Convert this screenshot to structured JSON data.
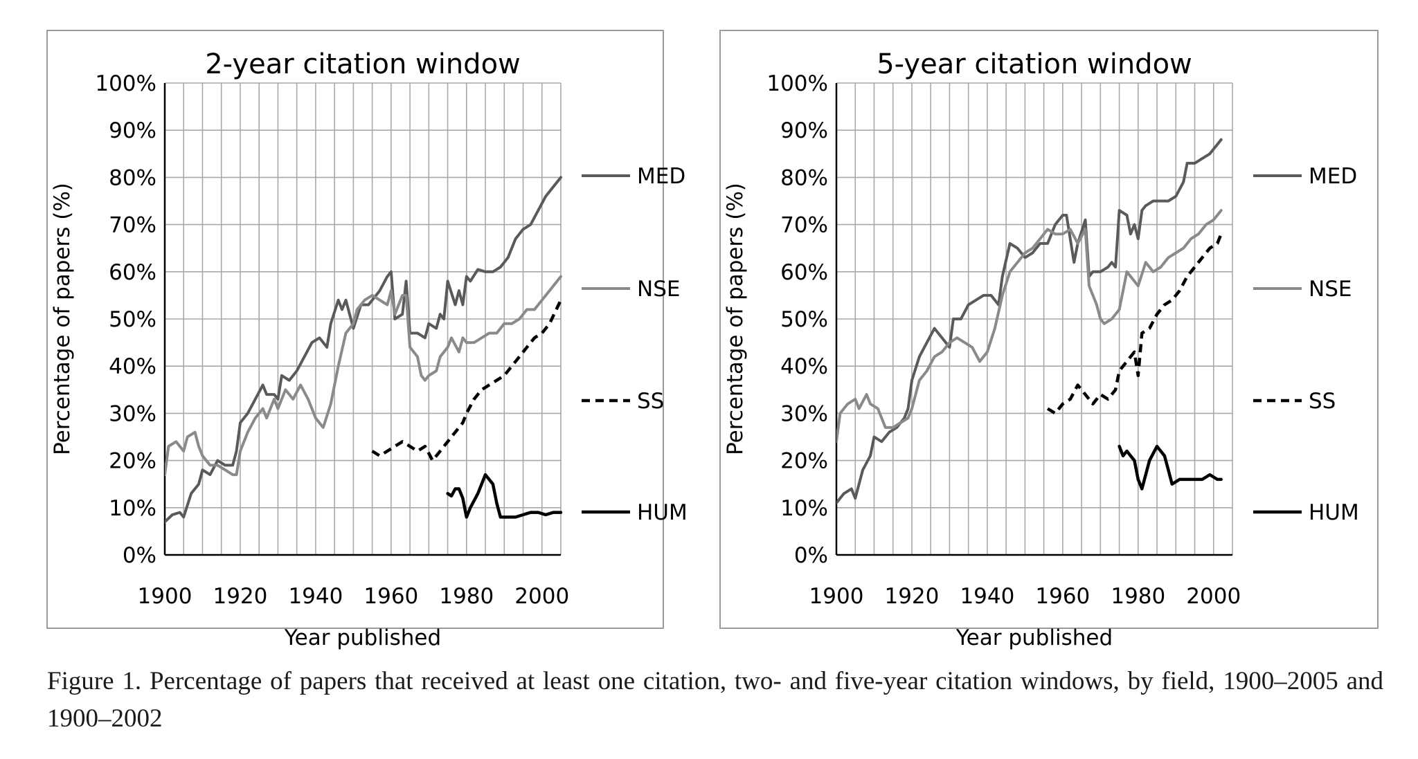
{
  "caption": "Figure 1. Percentage of papers that received at least one citation, two- and five-year citation windows, by field, 1900–2005 and 1900–2002",
  "chart_data": [
    {
      "type": "line",
      "title": "2-year citation window",
      "xlabel": "Year published",
      "ylabel": "Percentage of papers (%)",
      "xlim": [
        1900,
        2005
      ],
      "ylim": [
        0,
        100
      ],
      "xticks": [
        1900,
        1920,
        1940,
        1960,
        1980,
        2000
      ],
      "yticks": [
        0,
        10,
        20,
        30,
        40,
        50,
        60,
        70,
        80,
        90,
        100
      ],
      "ytick_suffix": "%",
      "grid": true,
      "legend": "right",
      "series": [
        {
          "name": "MED",
          "color": "#5a5a5a",
          "dash": "solid",
          "width": 4,
          "x": [
            1900,
            1902,
            1904,
            1905,
            1907,
            1909,
            1910,
            1912,
            1914,
            1916,
            1918,
            1919,
            1920,
            1922,
            1924,
            1926,
            1927,
            1929,
            1930,
            1931,
            1933,
            1935,
            1937,
            1939,
            1941,
            1943,
            1944,
            1946,
            1947,
            1948,
            1950,
            1952,
            1954,
            1955,
            1957,
            1959,
            1960,
            1961,
            1963,
            1964,
            1965,
            1967,
            1969,
            1970,
            1972,
            1973,
            1974,
            1975,
            1977,
            1978,
            1979,
            1980,
            1981,
            1983,
            1985,
            1987,
            1989,
            1991,
            1993,
            1995,
            1997,
            1999,
            2001,
            2003,
            2005
          ],
          "values": [
            7,
            8.5,
            9,
            8,
            13,
            15,
            18,
            17,
            20,
            19,
            19,
            22,
            28,
            30,
            33,
            36,
            34,
            34,
            33,
            38,
            37,
            39,
            42,
            45,
            46,
            44,
            49,
            54,
            52,
            54,
            48,
            53,
            53,
            54,
            56,
            59,
            60,
            50,
            51,
            58,
            47,
            47,
            46,
            49,
            48,
            51,
            50,
            58,
            53,
            56,
            53,
            59,
            58,
            60.5,
            60,
            60,
            61,
            63,
            67,
            69,
            70,
            73,
            76,
            78,
            80
          ]
        },
        {
          "name": "NSE",
          "color": "#8a8a8a",
          "dash": "solid",
          "width": 4,
          "x": [
            1900,
            1901,
            1903,
            1905,
            1906,
            1908,
            1909,
            1910,
            1912,
            1914,
            1916,
            1918,
            1919,
            1920,
            1922,
            1924,
            1926,
            1927,
            1929,
            1930,
            1932,
            1934,
            1936,
            1938,
            1940,
            1942,
            1944,
            1946,
            1948,
            1950,
            1951,
            1953,
            1955,
            1957,
            1959,
            1960,
            1961,
            1963,
            1964,
            1965,
            1967,
            1968,
            1969,
            1970,
            1972,
            1973,
            1975,
            1976,
            1978,
            1979,
            1980,
            1982,
            1984,
            1986,
            1988,
            1990,
            1992,
            1994,
            1996,
            1998,
            2000,
            2002,
            2005
          ],
          "values": [
            17,
            23,
            24,
            22,
            25,
            26,
            23,
            21,
            19,
            19,
            18,
            17,
            17,
            22,
            26,
            29,
            31,
            29,
            33,
            31,
            35,
            33,
            36,
            33,
            29,
            27,
            32,
            40,
            47,
            49,
            52,
            54,
            55,
            54,
            53,
            56,
            51,
            55,
            55,
            44,
            42,
            38,
            37,
            38,
            39,
            42,
            44,
            46,
            43,
            46,
            45,
            45,
            46,
            47,
            47,
            49,
            49,
            50,
            52,
            52,
            54,
            56,
            59
          ]
        },
        {
          "name": "SS",
          "color": "#000000",
          "dash": "dashed",
          "width": 4.5,
          "x": [
            1955,
            1957,
            1959,
            1961,
            1963,
            1965,
            1967,
            1969,
            1971,
            1973,
            1975,
            1977,
            1979,
            1980,
            1982,
            1984,
            1986,
            1988,
            1990,
            1992,
            1994,
            1996,
            1998,
            2000,
            2002,
            2005
          ],
          "values": [
            22,
            21,
            22,
            23,
            24,
            23,
            22,
            23,
            20,
            22,
            24,
            26,
            28,
            30,
            33,
            35,
            36,
            37,
            38,
            40,
            42,
            44,
            46,
            47,
            49,
            54
          ]
        },
        {
          "name": "HUM",
          "color": "#000000",
          "dash": "solid",
          "width": 4.5,
          "x": [
            1975,
            1976,
            1977,
            1978,
            1979,
            1980,
            1981,
            1983,
            1985,
            1987,
            1988,
            1989,
            1991,
            1993,
            1995,
            1997,
            1999,
            2001,
            2003,
            2005
          ],
          "values": [
            13,
            12.5,
            14,
            14,
            12,
            8,
            10,
            13,
            17,
            15,
            11,
            8,
            8,
            8,
            8.5,
            9,
            9,
            8.5,
            9,
            9
          ]
        }
      ]
    },
    {
      "type": "line",
      "title": "5-year citation window",
      "xlabel": "Year published",
      "ylabel": "Percentage of papers (%)",
      "xlim": [
        1900,
        2005
      ],
      "ylim": [
        0,
        100
      ],
      "xticks": [
        1900,
        1920,
        1940,
        1960,
        1980,
        2000
      ],
      "yticks": [
        0,
        10,
        20,
        30,
        40,
        50,
        60,
        70,
        80,
        90,
        100
      ],
      "ytick_suffix": "%",
      "grid": true,
      "legend": "right",
      "series": [
        {
          "name": "MED",
          "color": "#5a5a5a",
          "dash": "solid",
          "width": 4,
          "x": [
            1900,
            1902,
            1904,
            1905,
            1907,
            1909,
            1910,
            1912,
            1914,
            1916,
            1918,
            1919,
            1920,
            1922,
            1924,
            1926,
            1928,
            1930,
            1931,
            1933,
            1935,
            1937,
            1939,
            1941,
            1943,
            1944,
            1946,
            1948,
            1950,
            1952,
            1954,
            1956,
            1958,
            1960,
            1961,
            1963,
            1964,
            1966,
            1967,
            1968,
            1970,
            1972,
            1973,
            1974,
            1975,
            1977,
            1978,
            1979,
            1980,
            1981,
            1982,
            1984,
            1986,
            1988,
            1990,
            1992,
            1993,
            1995,
            1997,
            1999,
            2001,
            2002
          ],
          "values": [
            11,
            13,
            14,
            12,
            18,
            21,
            25,
            24,
            26,
            27,
            29,
            31,
            37,
            42,
            45,
            48,
            46,
            44,
            50,
            50,
            53,
            54,
            55,
            55,
            53,
            59,
            66,
            65,
            63,
            64,
            66,
            66,
            70,
            72,
            72,
            62,
            66,
            71,
            59,
            60,
            60,
            61,
            62,
            61,
            73,
            72,
            68,
            70,
            67,
            73,
            74,
            75,
            75,
            75,
            76,
            79,
            83,
            83,
            84,
            85,
            87,
            88
          ]
        },
        {
          "name": "NSE",
          "color": "#8a8a8a",
          "dash": "solid",
          "width": 4,
          "x": [
            1900,
            1901,
            1903,
            1905,
            1906,
            1908,
            1909,
            1911,
            1913,
            1915,
            1917,
            1919,
            1920,
            1922,
            1924,
            1926,
            1928,
            1930,
            1932,
            1934,
            1936,
            1938,
            1940,
            1942,
            1944,
            1946,
            1948,
            1950,
            1952,
            1954,
            1956,
            1958,
            1960,
            1962,
            1964,
            1966,
            1967,
            1969,
            1970,
            1971,
            1973,
            1975,
            1977,
            1979,
            1980,
            1982,
            1984,
            1986,
            1988,
            1990,
            1992,
            1994,
            1996,
            1998,
            2000,
            2002
          ],
          "values": [
            24,
            30,
            32,
            33,
            31,
            34,
            32,
            31,
            27,
            27,
            28,
            29,
            31,
            37,
            39,
            42,
            43,
            45,
            46,
            45,
            44,
            41,
            43,
            48,
            55,
            60,
            62,
            64,
            65,
            67,
            69,
            68,
            68,
            69,
            66,
            69,
            57,
            53,
            50,
            49,
            50,
            52,
            60,
            58,
            57,
            62,
            60,
            61,
            63,
            64,
            65,
            67,
            68,
            70,
            71,
            73
          ]
        },
        {
          "name": "SS",
          "color": "#000000",
          "dash": "dashed",
          "width": 4.5,
          "x": [
            1956,
            1958,
            1960,
            1962,
            1964,
            1966,
            1968,
            1970,
            1972,
            1974,
            1975,
            1977,
            1979,
            1980,
            1981,
            1983,
            1985,
            1987,
            1989,
            1991,
            1993,
            1995,
            1997,
            1999,
            2001,
            2002
          ],
          "values": [
            31,
            30,
            32,
            33,
            36,
            34,
            32,
            34,
            33,
            35,
            39,
            41,
            43,
            38,
            47,
            48,
            51,
            53,
            54,
            56,
            59,
            61,
            63,
            65,
            66,
            68
          ]
        },
        {
          "name": "HUM",
          "color": "#000000",
          "dash": "solid",
          "width": 4.5,
          "x": [
            1975,
            1976,
            1977,
            1978,
            1979,
            1980,
            1981,
            1983,
            1985,
            1987,
            1988,
            1989,
            1991,
            1993,
            1995,
            1997,
            1999,
            2001,
            2002
          ],
          "values": [
            23,
            21,
            22,
            21,
            20,
            16,
            14,
            20,
            23,
            21,
            18,
            15,
            16,
            16,
            16,
            16,
            17,
            16,
            16
          ]
        }
      ]
    }
  ]
}
